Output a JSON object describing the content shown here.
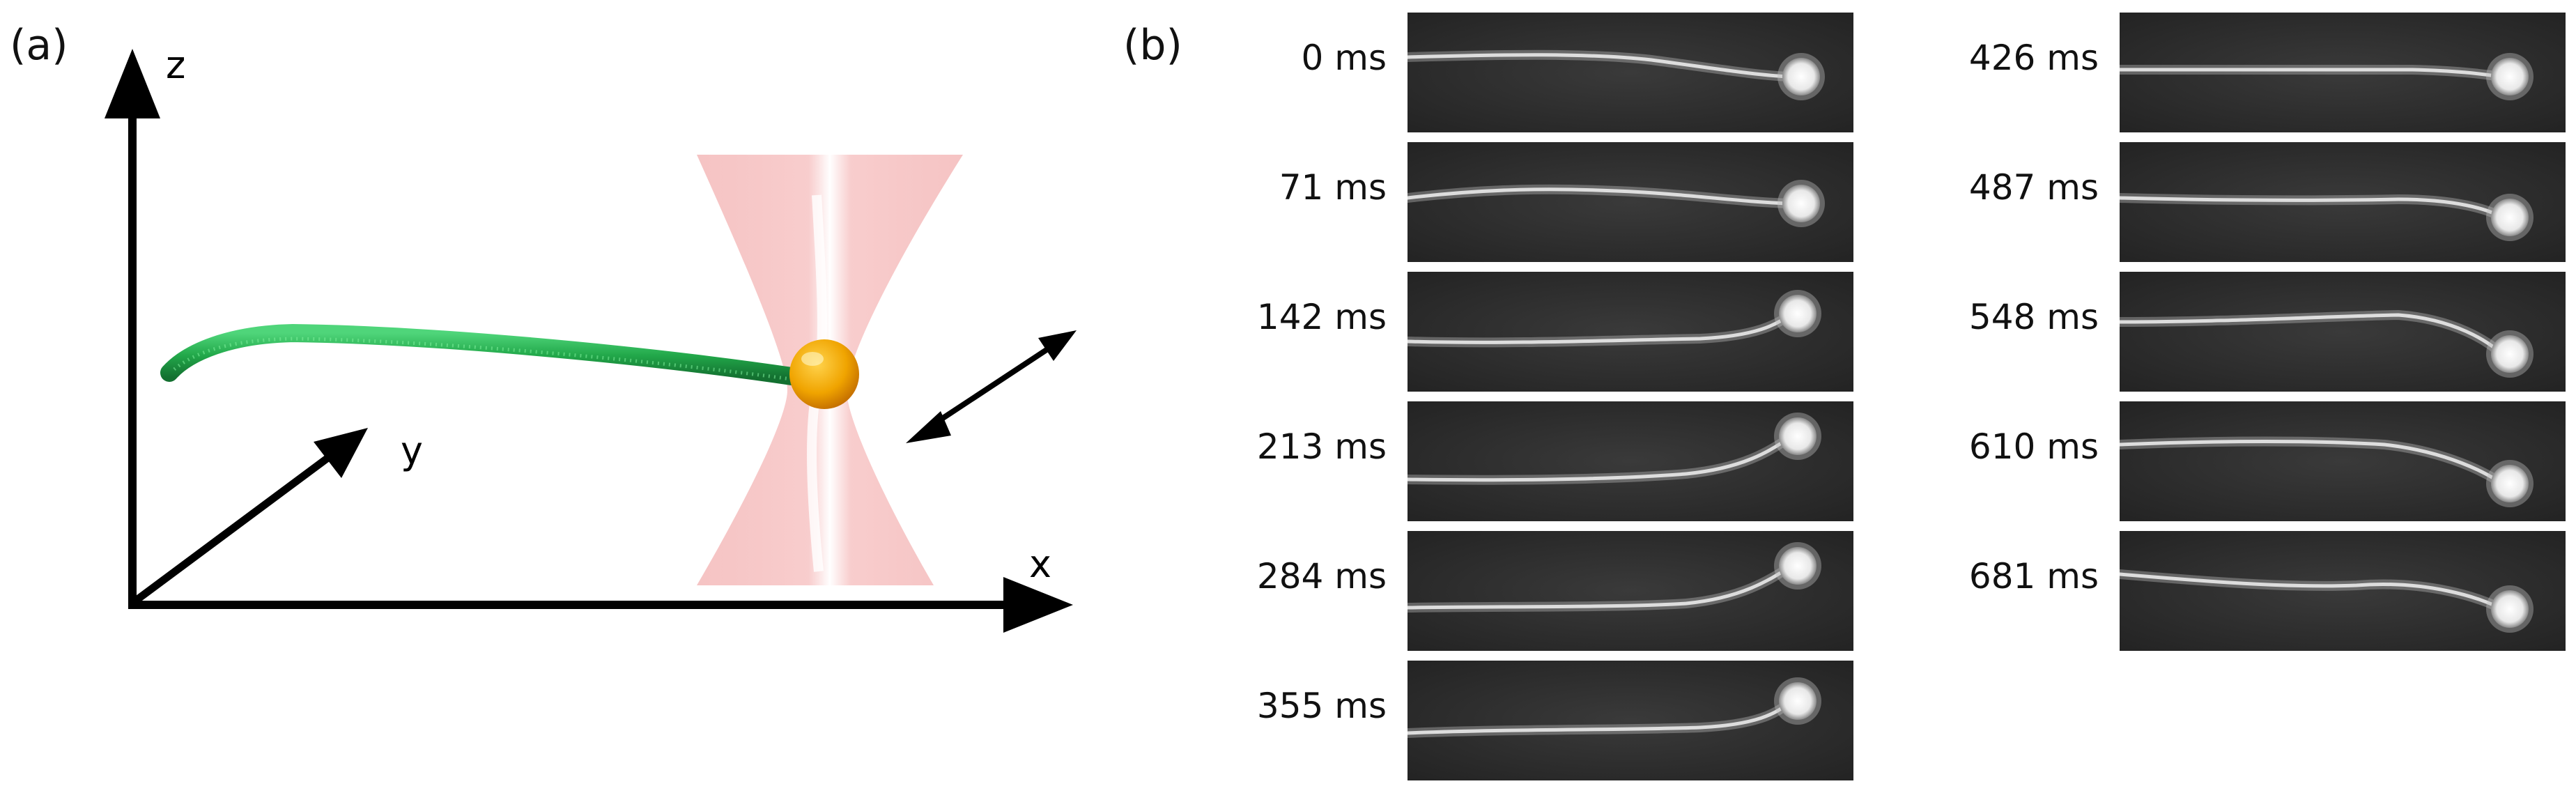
{
  "panel_a": {
    "label": "(a)",
    "axes": {
      "z": "z",
      "y": "y",
      "x": "x"
    }
  },
  "panel_b": {
    "label": "(b)",
    "frames": [
      {
        "time": "0 ms"
      },
      {
        "time": "71 ms"
      },
      {
        "time": "142 ms"
      },
      {
        "time": "213 ms"
      },
      {
        "time": "284 ms"
      },
      {
        "time": "355 ms"
      },
      {
        "time": "426 ms"
      },
      {
        "time": "487 ms"
      },
      {
        "time": "548 ms"
      },
      {
        "time": "610 ms"
      },
      {
        "time": "681 ms"
      }
    ]
  }
}
